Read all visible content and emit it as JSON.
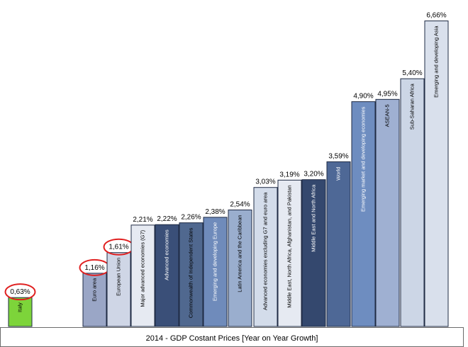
{
  "chart_data": {
    "type": "bar",
    "title": "",
    "xlabel": "2014 - GDP Costant Prices [Year on Year Growth]",
    "ylabel": "",
    "ylim": [
      0,
      6.9
    ],
    "grid": false,
    "legend": "none",
    "categories": [
      "Italy",
      "Euro area",
      "European Union",
      "Major advanced economies (G7)",
      "Advanced economies",
      "Commonwealth of Independent States",
      "Emerging and developing Europe",
      "Latin America and the Caribbean",
      "Advanced economies excluding G7 and euro area",
      "Middle East, North Africa, Afghanistan, and Pakistan",
      "Middle East and North Africa",
      "World",
      "Emerging market and developing economies",
      "ASEAN-5",
      "Sub-Saharan Africa",
      "Emerging and developing Asia"
    ],
    "values": [
      0.63,
      1.16,
      1.61,
      2.21,
      2.22,
      2.26,
      2.38,
      2.54,
      3.03,
      3.19,
      3.2,
      3.59,
      4.9,
      4.95,
      5.4,
      6.66
    ],
    "value_labels": [
      "0,63%",
      "1,16%",
      "1,61%",
      "2,21%",
      "2,22%",
      "2,26%",
      "2,38%",
      "2,54%",
      "3,03%",
      "3,19%",
      "3,20%",
      "3,59%",
      "4,90%",
      "4,95%",
      "5,40%",
      "6,66%"
    ],
    "bar_colors": [
      "#7dd43a",
      "#9aa6c6",
      "#cfd6e6",
      "#e6eaf2",
      "#3a4f78",
      "#50688f",
      "#6f8bbb",
      "#9aaece",
      "#d3dcea",
      "#e6eaf2",
      "#34486e",
      "#4e6896",
      "#6e8dc0",
      "#9fb0d2",
      "#ccd6e6",
      "#d9e0ec"
    ],
    "label_text_colors": [
      "#000000",
      "#000000",
      "#000000",
      "#000000",
      "#ffffff",
      "#000000",
      "#ffffff",
      "#000000",
      "#000000",
      "#000000",
      "#ffffff",
      "#ffffff",
      "#ffffff",
      "#000000",
      "#000000",
      "#000000"
    ],
    "highlighted": [
      0,
      1,
      2
    ],
    "highlight_color": "#e02020"
  }
}
